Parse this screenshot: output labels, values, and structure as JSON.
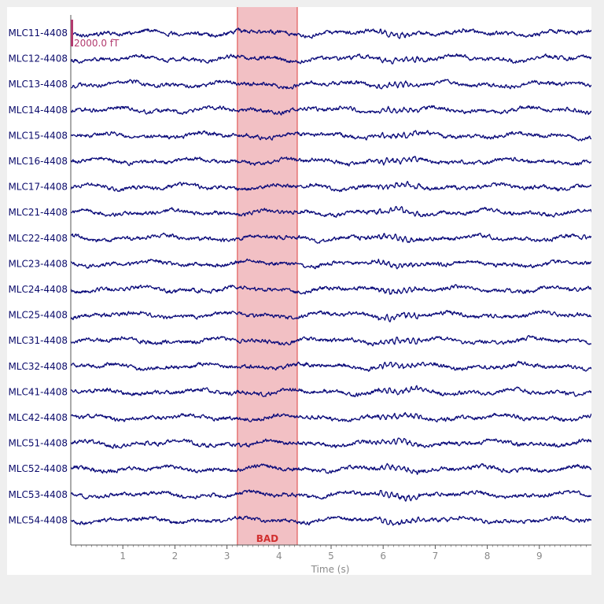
{
  "chart_data": {
    "type": "line",
    "xlabel": "Time (s)",
    "xlim": [
      0,
      10
    ],
    "x_ticks": [
      1,
      2,
      3,
      4,
      5,
      6,
      7,
      8,
      9
    ],
    "channels": [
      "MLC11-4408",
      "MLC12-4408",
      "MLC13-4408",
      "MLC14-4408",
      "MLC15-4408",
      "MLC16-4408",
      "MLC17-4408",
      "MLC21-4408",
      "MLC22-4408",
      "MLC23-4408",
      "MLC24-4408",
      "MLC25-4408",
      "MLC31-4408",
      "MLC32-4408",
      "MLC41-4408",
      "MLC42-4408",
      "MLC51-4408",
      "MLC52-4408",
      "MLC53-4408",
      "MLC54-4408"
    ],
    "scale_bar": {
      "label": "2000.0 fT",
      "color": "#b23a6e"
    },
    "annotations": [
      {
        "label": "BAD",
        "start": 3.2,
        "end": 4.35,
        "color": "#f2c0c4",
        "edge_color": "#e05a5a"
      }
    ],
    "colors": {
      "trace": "#0b0b7a",
      "axis": "#555555",
      "tick_label": "#8a8a8a"
    }
  }
}
